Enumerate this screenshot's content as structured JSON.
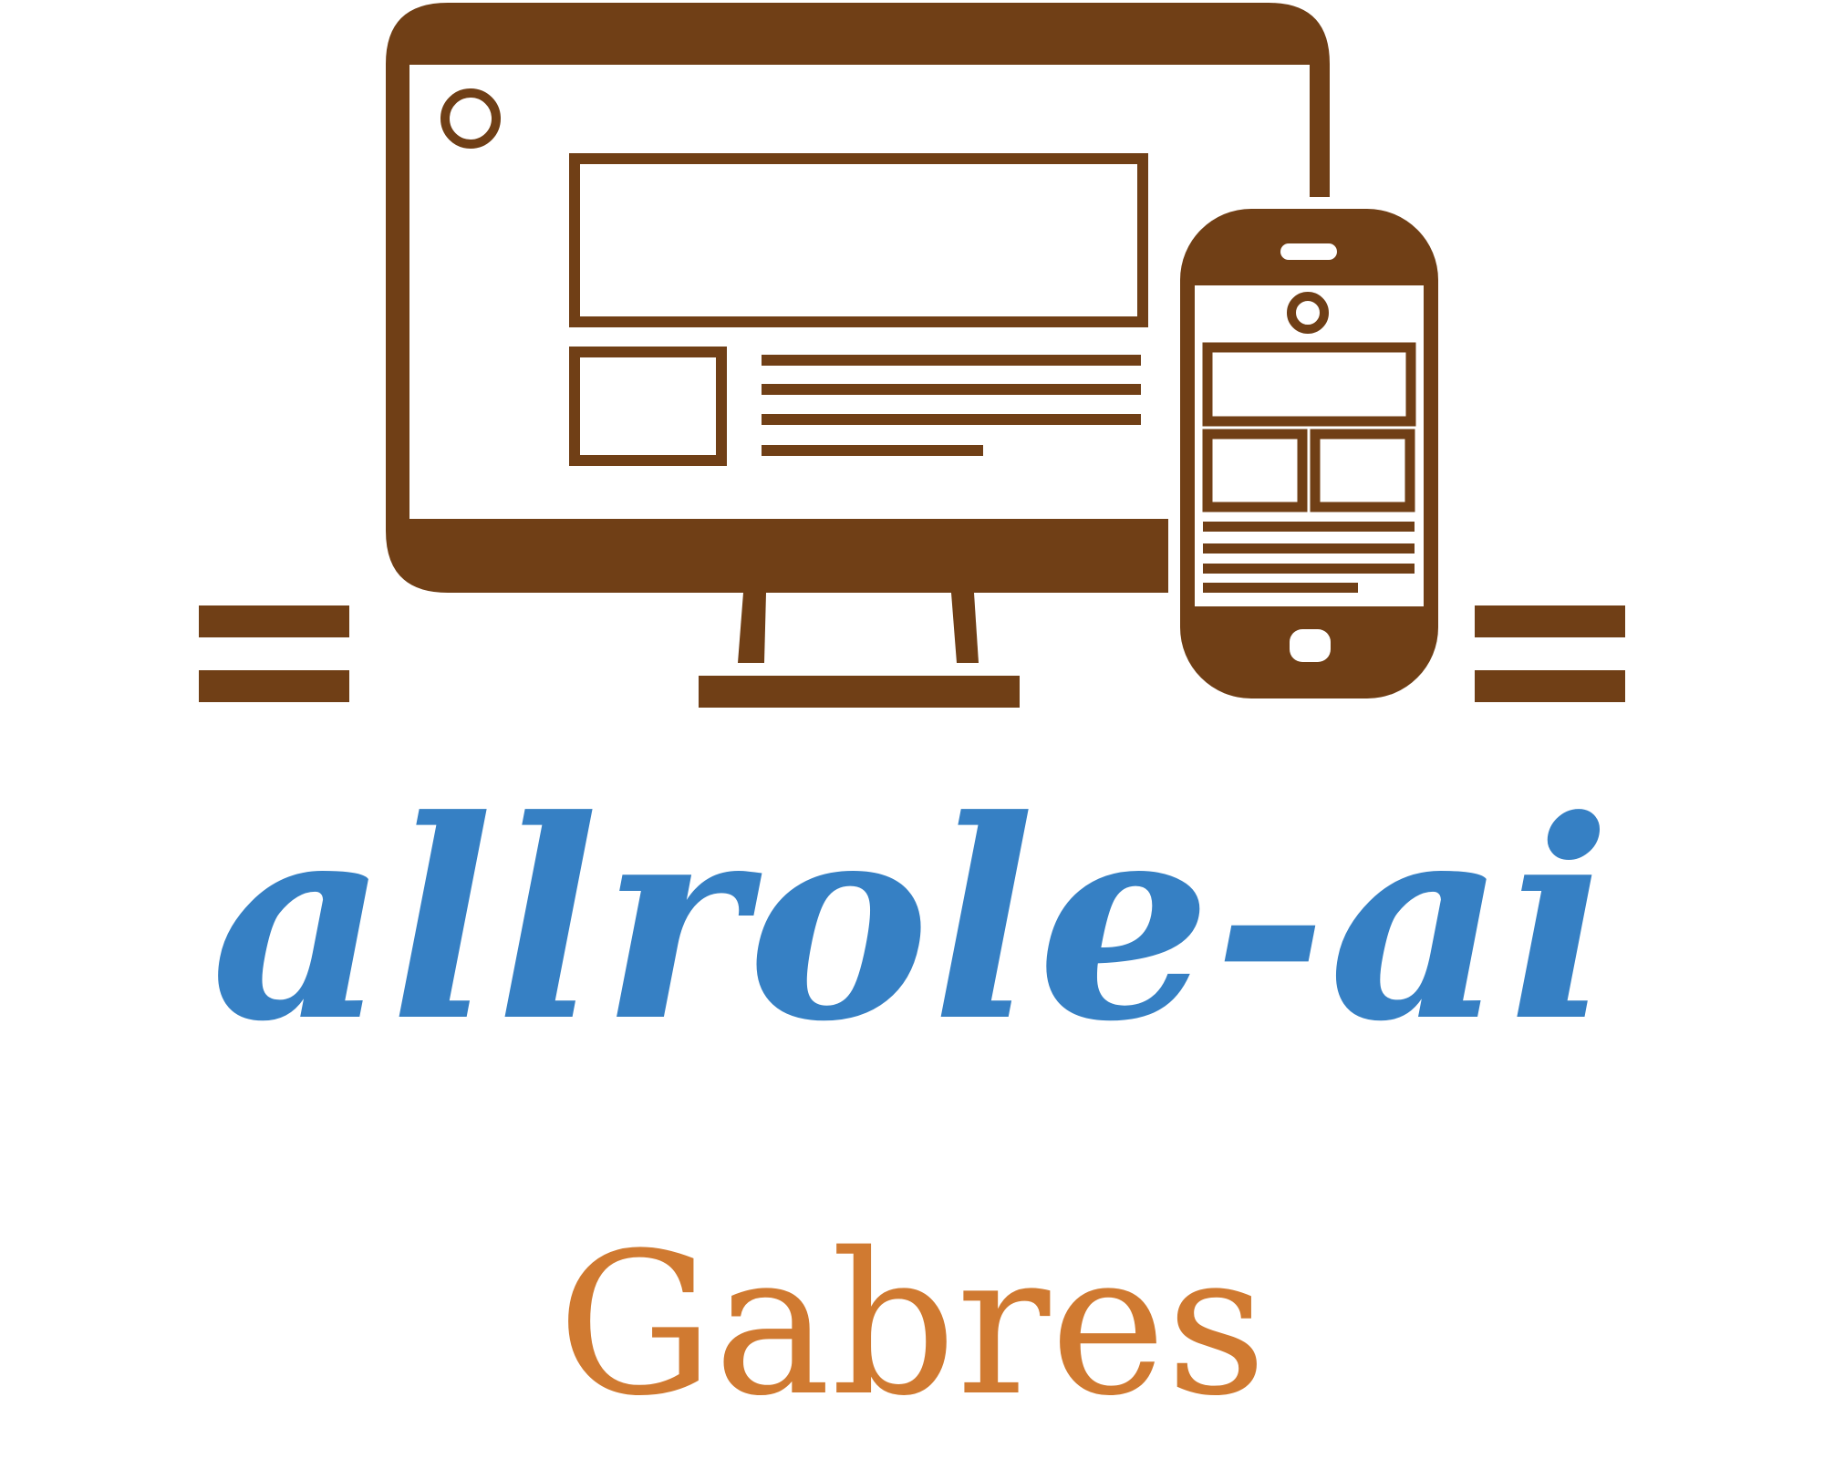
{
  "logo": {
    "wordmark": "allrole-ai",
    "subtitle": "Gabres",
    "icon_name": "desktop-and-mobile-devices-icon",
    "colors": {
      "wordmark": "#3680c4",
      "subtitle": "#d07a31",
      "icon": "#703f16",
      "background": "#ffffff"
    }
  }
}
